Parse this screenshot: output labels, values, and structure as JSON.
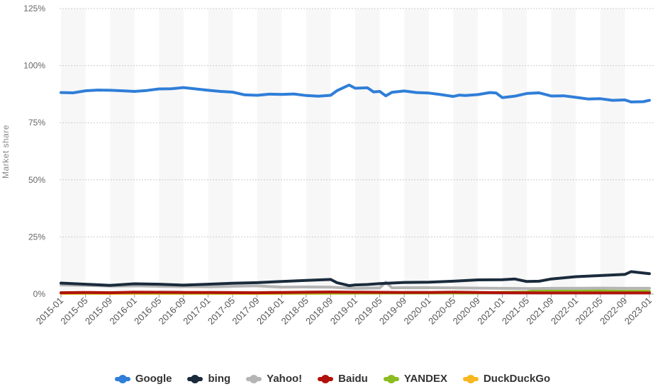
{
  "chart_data": {
    "type": "line",
    "ylabel": "Market share",
    "xlabel": "",
    "ylim": [
      0,
      125
    ],
    "yticks": [
      0,
      25,
      50,
      75,
      100,
      125
    ],
    "ytick_labels": [
      "0%",
      "25%",
      "50%",
      "75%",
      "100%",
      "125%"
    ],
    "x_start": "2015-01",
    "x_end": "2023-01",
    "xtick_labels": [
      "2015-01",
      "2015-05",
      "2015-09",
      "2016-01",
      "2016-05",
      "2016-09",
      "2017-01",
      "2017-05",
      "2017-09",
      "2018-01",
      "2018-05",
      "2018-09",
      "2019-01",
      "2019-05",
      "2019-09",
      "2020-01",
      "2020-05",
      "2020-09",
      "2021-01",
      "2021-05",
      "2021-09",
      "2022-01",
      "2022-05",
      "2022-09",
      "2023-01"
    ],
    "grid": true,
    "legend_position": "bottom",
    "series": [
      {
        "name": "Google",
        "color": "#2f7ed8",
        "points": [
          [
            "2015-01",
            88.2
          ],
          [
            "2015-03",
            88.1
          ],
          [
            "2015-05",
            89.0
          ],
          [
            "2015-07",
            89.3
          ],
          [
            "2015-09",
            89.2
          ],
          [
            "2015-11",
            89.0
          ],
          [
            "2016-01",
            88.7
          ],
          [
            "2016-03",
            89.1
          ],
          [
            "2016-05",
            89.8
          ],
          [
            "2016-07",
            89.9
          ],
          [
            "2016-09",
            90.4
          ],
          [
            "2016-11",
            89.8
          ],
          [
            "2017-01",
            89.2
          ],
          [
            "2017-03",
            88.7
          ],
          [
            "2017-05",
            88.4
          ],
          [
            "2017-07",
            87.2
          ],
          [
            "2017-09",
            87.0
          ],
          [
            "2017-11",
            87.5
          ],
          [
            "2018-01",
            87.4
          ],
          [
            "2018-03",
            87.6
          ],
          [
            "2018-05",
            86.9
          ],
          [
            "2018-07",
            86.6
          ],
          [
            "2018-09",
            87.0
          ],
          [
            "2018-10",
            89.0
          ],
          [
            "2018-12",
            91.5
          ],
          [
            "2019-01",
            90.1
          ],
          [
            "2019-03",
            90.3
          ],
          [
            "2019-04",
            88.5
          ],
          [
            "2019-05",
            88.7
          ],
          [
            "2019-06",
            86.8
          ],
          [
            "2019-07",
            88.3
          ],
          [
            "2019-09",
            88.9
          ],
          [
            "2019-11",
            88.2
          ],
          [
            "2020-01",
            88.0
          ],
          [
            "2020-03",
            87.3
          ],
          [
            "2020-05",
            86.5
          ],
          [
            "2020-06",
            87.1
          ],
          [
            "2020-07",
            86.9
          ],
          [
            "2020-09",
            87.3
          ],
          [
            "2020-11",
            88.2
          ],
          [
            "2020-12",
            88.0
          ],
          [
            "2021-01",
            86.0
          ],
          [
            "2021-03",
            86.6
          ],
          [
            "2021-05",
            87.8
          ],
          [
            "2021-07",
            88.1
          ],
          [
            "2021-09",
            86.7
          ],
          [
            "2021-11",
            86.8
          ],
          [
            "2022-01",
            86.1
          ],
          [
            "2022-03",
            85.4
          ],
          [
            "2022-05",
            85.5
          ],
          [
            "2022-07",
            84.8
          ],
          [
            "2022-09",
            85.0
          ],
          [
            "2022-10",
            84.1
          ],
          [
            "2022-12",
            84.2
          ],
          [
            "2023-01",
            84.8
          ]
        ]
      },
      {
        "name": "bing",
        "color": "#1a2b3c",
        "points": [
          [
            "2015-01",
            4.8
          ],
          [
            "2015-05",
            4.3
          ],
          [
            "2015-09",
            3.8
          ],
          [
            "2016-01",
            4.5
          ],
          [
            "2016-05",
            4.3
          ],
          [
            "2016-09",
            3.9
          ],
          [
            "2017-01",
            4.3
          ],
          [
            "2017-05",
            4.7
          ],
          [
            "2017-09",
            5.0
          ],
          [
            "2018-01",
            5.5
          ],
          [
            "2018-05",
            6.0
          ],
          [
            "2018-09",
            6.4
          ],
          [
            "2018-10",
            5.0
          ],
          [
            "2018-12",
            3.7
          ],
          [
            "2019-01",
            4.0
          ],
          [
            "2019-03",
            4.2
          ],
          [
            "2019-05",
            4.6
          ],
          [
            "2019-09",
            5.1
          ],
          [
            "2020-01",
            5.2
          ],
          [
            "2020-05",
            5.6
          ],
          [
            "2020-09",
            6.2
          ],
          [
            "2021-01",
            6.3
          ],
          [
            "2021-03",
            6.6
          ],
          [
            "2021-05",
            5.5
          ],
          [
            "2021-07",
            5.6
          ],
          [
            "2021-09",
            6.6
          ],
          [
            "2021-11",
            7.1
          ],
          [
            "2022-01",
            7.6
          ],
          [
            "2022-05",
            8.1
          ],
          [
            "2022-09",
            8.6
          ],
          [
            "2022-10",
            9.8
          ],
          [
            "2023-01",
            8.9
          ]
        ]
      },
      {
        "name": "Yahoo!",
        "color": "#b5b5b5",
        "points": [
          [
            "2015-01",
            4.0
          ],
          [
            "2015-05",
            3.8
          ],
          [
            "2015-09",
            3.5
          ],
          [
            "2016-01",
            3.6
          ],
          [
            "2016-05",
            3.4
          ],
          [
            "2016-09",
            3.3
          ],
          [
            "2017-01",
            3.2
          ],
          [
            "2017-05",
            3.4
          ],
          [
            "2017-09",
            3.6
          ],
          [
            "2018-01",
            3.0
          ],
          [
            "2018-05",
            3.1
          ],
          [
            "2018-09",
            3.0
          ],
          [
            "2018-12",
            2.6
          ],
          [
            "2019-01",
            2.5
          ],
          [
            "2019-05",
            2.7
          ],
          [
            "2019-06",
            5.2
          ],
          [
            "2019-07",
            2.7
          ],
          [
            "2019-09",
            2.8
          ],
          [
            "2020-01",
            2.8
          ],
          [
            "2020-05",
            2.7
          ],
          [
            "2020-09",
            2.6
          ],
          [
            "2021-01",
            2.5
          ],
          [
            "2021-05",
            2.4
          ],
          [
            "2021-09",
            2.5
          ],
          [
            "2022-01",
            2.5
          ],
          [
            "2022-05",
            2.6
          ],
          [
            "2022-09",
            2.5
          ],
          [
            "2023-01",
            2.5
          ]
        ]
      },
      {
        "name": "Baidu",
        "color": "#b0120a",
        "points": [
          [
            "2015-01",
            0.6
          ],
          [
            "2015-05",
            0.7
          ],
          [
            "2015-09",
            0.6
          ],
          [
            "2016-01",
            0.8
          ],
          [
            "2016-09",
            0.7
          ],
          [
            "2017-01",
            0.7
          ],
          [
            "2017-09",
            0.6
          ],
          [
            "2018-01",
            0.7
          ],
          [
            "2018-05",
            0.8
          ],
          [
            "2018-09",
            0.9
          ],
          [
            "2019-01",
            0.8
          ],
          [
            "2019-09",
            0.7
          ],
          [
            "2020-01",
            0.7
          ],
          [
            "2020-05",
            0.8
          ],
          [
            "2020-09",
            0.7
          ],
          [
            "2021-01",
            0.6
          ],
          [
            "2021-09",
            0.5
          ],
          [
            "2022-01",
            0.5
          ],
          [
            "2022-09",
            0.5
          ],
          [
            "2023-01",
            0.5
          ]
        ]
      },
      {
        "name": "YANDEX",
        "color": "#8bbc21",
        "points": [
          [
            "2015-01",
            0.5
          ],
          [
            "2015-09",
            0.6
          ],
          [
            "2016-01",
            0.6
          ],
          [
            "2017-01",
            0.5
          ],
          [
            "2017-09",
            0.5
          ],
          [
            "2018-01",
            0.5
          ],
          [
            "2019-01",
            0.5
          ],
          [
            "2019-09",
            0.5
          ],
          [
            "2020-01",
            0.5
          ],
          [
            "2020-09",
            0.5
          ],
          [
            "2021-01",
            0.7
          ],
          [
            "2021-05",
            0.9
          ],
          [
            "2021-07",
            1.8
          ],
          [
            "2021-09",
            1.4
          ],
          [
            "2022-01",
            1.3
          ],
          [
            "2022-05",
            1.4
          ],
          [
            "2022-09",
            1.2
          ],
          [
            "2023-01",
            1.2
          ]
        ]
      },
      {
        "name": "DuckDuckGo",
        "color": "#f7b71f",
        "points": [
          [
            "2015-01",
            0.3
          ],
          [
            "2016-01",
            0.3
          ],
          [
            "2017-01",
            0.3
          ],
          [
            "2018-01",
            0.3
          ],
          [
            "2019-01",
            0.4
          ],
          [
            "2020-01",
            0.5
          ],
          [
            "2020-09",
            0.6
          ],
          [
            "2021-01",
            0.7
          ],
          [
            "2021-09",
            0.6
          ],
          [
            "2022-01",
            0.7
          ],
          [
            "2022-09",
            0.6
          ],
          [
            "2023-01",
            0.6
          ]
        ]
      }
    ]
  },
  "legend": {
    "items": [
      {
        "label": "Google",
        "color": "#2f7ed8"
      },
      {
        "label": "bing",
        "color": "#1a2b3c"
      },
      {
        "label": "Yahoo!",
        "color": "#b5b5b5"
      },
      {
        "label": "Baidu",
        "color": "#b0120a"
      },
      {
        "label": "YANDEX",
        "color": "#8bbc21"
      },
      {
        "label": "DuckDuckGo",
        "color": "#f7b71f"
      }
    ]
  }
}
